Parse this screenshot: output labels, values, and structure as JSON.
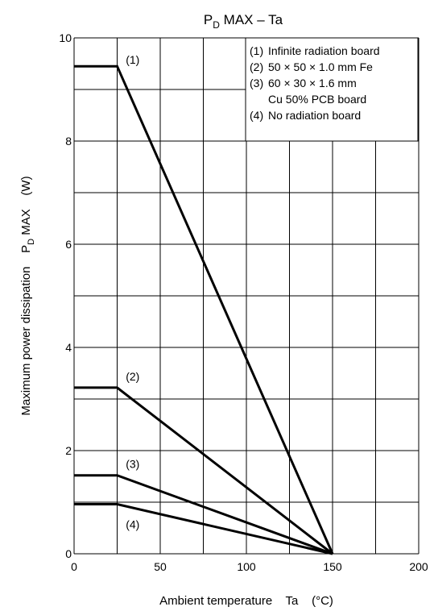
{
  "chart_data": {
    "type": "line",
    "title": {
      "main": "P",
      "sub": "D",
      "rest": " MAX – Ta"
    },
    "xlabel": "Ambient temperature    Ta    (°C)",
    "ylabel": {
      "pre": "Maximum power dissipation    P",
      "sub": "D",
      "post": " MAX    (W)"
    },
    "xlim": [
      0,
      200
    ],
    "ylim": [
      0,
      10
    ],
    "x_ticks": [
      0,
      50,
      100,
      150,
      200
    ],
    "y_ticks": [
      0,
      2,
      4,
      6,
      8,
      10
    ],
    "x_grid_step": 25,
    "y_grid_step": 1,
    "grid": true,
    "legend_position": "top-right",
    "legend": [
      {
        "num": "(1)",
        "text": "Infinite radiation board"
      },
      {
        "num": "(2)",
        "text": "50 × 50 × 1.0 mm Fe"
      },
      {
        "num": "(3)",
        "text": "60 × 30 × 1.6 mm"
      },
      {
        "num": "",
        "text": "Cu 50% PCB board"
      },
      {
        "num": "(4)",
        "text": "No radiation board"
      }
    ],
    "series": [
      {
        "label": "(1)",
        "x": [
          0,
          25,
          150
        ],
        "y": [
          9.45,
          9.45,
          0
        ]
      },
      {
        "label": "(2)",
        "x": [
          0,
          25,
          150
        ],
        "y": [
          3.22,
          3.22,
          0
        ]
      },
      {
        "label": "(3)",
        "x": [
          0,
          25,
          150
        ],
        "y": [
          1.52,
          1.52,
          0
        ]
      },
      {
        "label": "(4)",
        "x": [
          0,
          25,
          150
        ],
        "y": [
          0.96,
          0.96,
          0
        ]
      }
    ]
  }
}
